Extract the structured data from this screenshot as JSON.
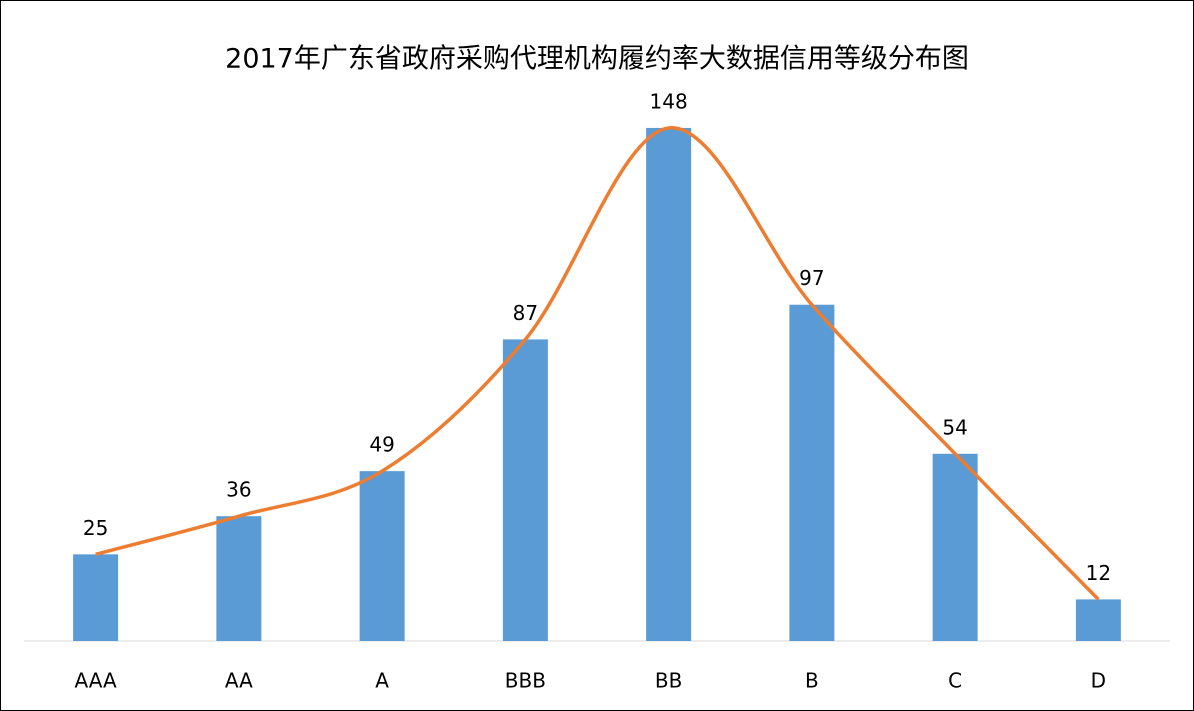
{
  "chart_data": {
    "type": "bar",
    "title": "2017年广东省政府采购代理机构履约率大数据信用等级分布图",
    "categories": [
      "AAA",
      "AA",
      "A",
      "BBB",
      "BB",
      "B",
      "C",
      "D"
    ],
    "values": [
      25,
      36,
      49,
      87,
      148,
      97,
      54,
      12
    ],
    "color": "#5b9bd5",
    "line_color": "#ed7d31",
    "smooth_line": true,
    "ylim": [
      0,
      150
    ]
  }
}
